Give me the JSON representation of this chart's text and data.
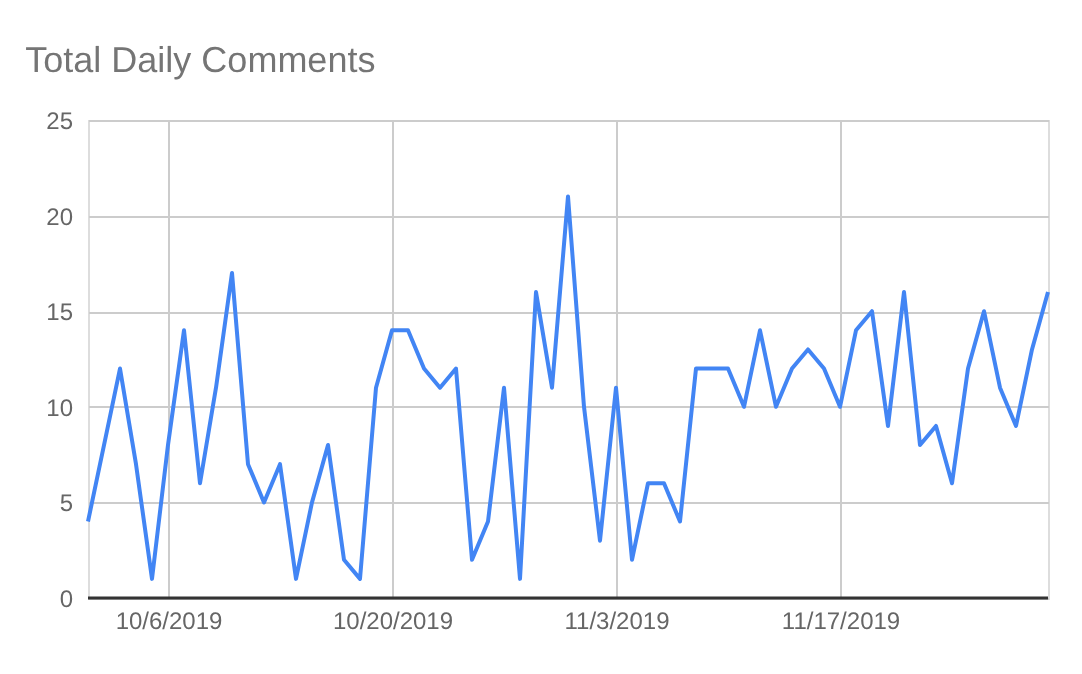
{
  "chart_data": {
    "type": "line",
    "title": "Total Daily Comments",
    "x": [
      "2019-10-01",
      "2019-10-02",
      "2019-10-03",
      "2019-10-04",
      "2019-10-05",
      "2019-10-06",
      "2019-10-07",
      "2019-10-08",
      "2019-10-09",
      "2019-10-10",
      "2019-10-11",
      "2019-10-12",
      "2019-10-13",
      "2019-10-14",
      "2019-10-15",
      "2019-10-16",
      "2019-10-17",
      "2019-10-18",
      "2019-10-19",
      "2019-10-20",
      "2019-10-21",
      "2019-10-22",
      "2019-10-23",
      "2019-10-24",
      "2019-10-25",
      "2019-10-26",
      "2019-10-27",
      "2019-10-28",
      "2019-10-29",
      "2019-10-30",
      "2019-10-31",
      "2019-11-01",
      "2019-11-02",
      "2019-11-03",
      "2019-11-04",
      "2019-11-05",
      "2019-11-06",
      "2019-11-07",
      "2019-11-08",
      "2019-11-09",
      "2019-11-10",
      "2019-11-11",
      "2019-11-12",
      "2019-11-13",
      "2019-11-14",
      "2019-11-15",
      "2019-11-16",
      "2019-11-17",
      "2019-11-18",
      "2019-11-19",
      "2019-11-20",
      "2019-11-21",
      "2019-11-22",
      "2019-11-23",
      "2019-11-24",
      "2019-11-25",
      "2019-11-26",
      "2019-11-27",
      "2019-11-28",
      "2019-11-29",
      "2019-11-30"
    ],
    "series": [
      {
        "color": "#4285f4",
        "values": [
          4,
          8,
          12,
          7,
          1,
          8,
          14,
          6,
          11,
          17,
          7,
          5,
          7,
          1,
          5,
          8,
          2,
          1,
          11,
          14,
          14,
          12,
          11,
          12,
          2,
          4,
          11,
          1,
          16,
          11,
          21,
          10,
          3,
          11,
          2,
          6,
          6,
          4,
          12,
          12,
          12,
          10,
          14,
          10,
          12,
          13,
          12,
          10,
          14,
          15,
          9,
          16,
          8,
          9,
          6,
          12,
          15,
          11,
          9,
          13,
          16
        ]
      }
    ],
    "xlim": [
      "2019-10-01",
      "2019-11-30"
    ],
    "xticks": [
      {
        "value": "2019-10-06",
        "label": "10/6/2019"
      },
      {
        "value": "2019-10-20",
        "label": "10/20/2019"
      },
      {
        "value": "2019-11-03",
        "label": "11/3/2019"
      },
      {
        "value": "2019-11-17",
        "label": "11/17/2019"
      }
    ],
    "ylim": [
      0,
      25
    ],
    "yticks": [
      0,
      5,
      10,
      15,
      20,
      25
    ],
    "grid": true,
    "marker": "none",
    "line_style": "solid"
  }
}
